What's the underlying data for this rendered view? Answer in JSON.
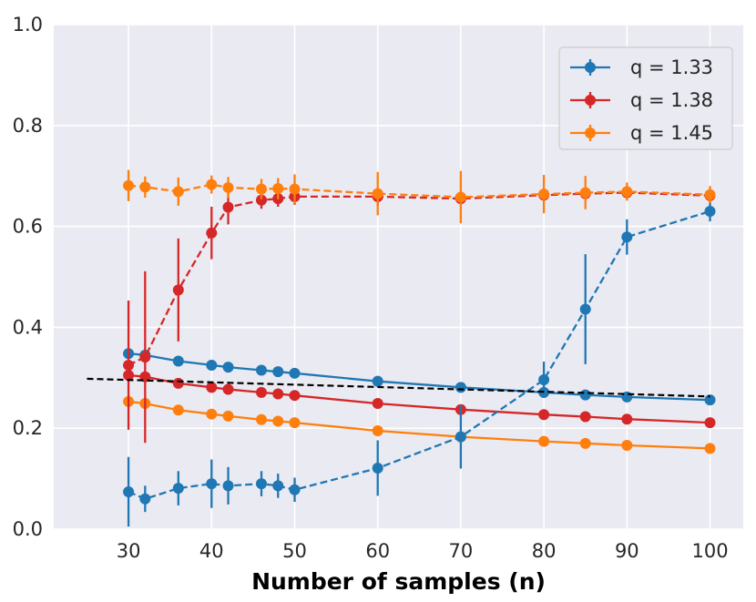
{
  "chart_data": {
    "type": "line",
    "title": "",
    "xlabel": "Number of samples (n)",
    "ylabel": "",
    "xlim": [
      21,
      104
    ],
    "ylim": [
      0.0,
      1.0
    ],
    "xticks": [
      30,
      40,
      50,
      60,
      70,
      80,
      90,
      100
    ],
    "yticks": [
      0.0,
      0.2,
      0.4,
      0.6,
      0.8,
      1.0
    ],
    "xtick_labels": [
      "30",
      "40",
      "50",
      "60",
      "70",
      "80",
      "90",
      "100"
    ],
    "ytick_labels": [
      "0.0",
      "0.2",
      "0.4",
      "0.6",
      "0.8",
      "1.0"
    ],
    "grid": true,
    "legend_position": "top-right",
    "legend": [
      {
        "label": "q = 1.33",
        "color": "#1f77b4"
      },
      {
        "label": "q = 1.38",
        "color": "#d62728"
      },
      {
        "label": "q = 1.45",
        "color": "#ff7f0e"
      }
    ],
    "x": [
      30,
      32,
      36,
      40,
      42,
      46,
      48,
      50,
      60,
      70,
      80,
      85,
      90,
      100
    ],
    "series": [
      {
        "name": "q = 1.33 (solid)",
        "color": "#1f77b4",
        "style": "solid",
        "values": [
          0.348,
          0.345,
          0.333,
          0.325,
          0.321,
          0.315,
          0.312,
          0.309,
          0.293,
          0.281,
          0.271,
          0.266,
          0.262,
          0.256
        ]
      },
      {
        "name": "q = 1.38 (solid)",
        "color": "#d62728",
        "style": "solid",
        "values": [
          0.305,
          0.302,
          0.289,
          0.281,
          0.277,
          0.271,
          0.268,
          0.265,
          0.249,
          0.237,
          0.227,
          0.223,
          0.218,
          0.211
        ]
      },
      {
        "name": "q = 1.45 (solid)",
        "color": "#ff7f0e",
        "style": "solid",
        "values": [
          0.253,
          0.249,
          0.236,
          0.228,
          0.224,
          0.217,
          0.214,
          0.211,
          0.195,
          0.183,
          0.174,
          0.17,
          0.166,
          0.16
        ]
      },
      {
        "name": "q = 1.33 (dashed)",
        "color": "#1f77b4",
        "style": "dashed",
        "values": [
          0.074,
          0.06,
          0.081,
          0.09,
          0.086,
          0.09,
          0.086,
          0.078,
          0.121,
          0.183,
          0.296,
          0.436,
          0.579,
          0.63
        ],
        "errors": [
          0.069,
          0.026,
          0.034,
          0.048,
          0.037,
          0.025,
          0.024,
          0.024,
          0.055,
          0.063,
          0.036,
          0.109,
          0.035,
          0.02
        ]
      },
      {
        "name": "q = 1.38 (dashed)",
        "color": "#d62728",
        "style": "dashed",
        "values": [
          0.325,
          0.341,
          0.474,
          0.587,
          0.638,
          0.652,
          0.655,
          0.659,
          0.659,
          0.655,
          0.662,
          0.665,
          0.667,
          0.661
        ],
        "errors": [
          0.128,
          0.17,
          0.102,
          0.052,
          0.034,
          0.017,
          0.016,
          0.016,
          0.018,
          0.012,
          0.01,
          0.01,
          0.008,
          0.007
        ]
      },
      {
        "name": "q = 1.45 (dashed)",
        "color": "#ff7f0e",
        "style": "dashed",
        "values": [
          0.681,
          0.678,
          0.669,
          0.683,
          0.677,
          0.674,
          0.675,
          0.674,
          0.665,
          0.658,
          0.664,
          0.667,
          0.669,
          0.663
        ],
        "errors": [
          0.031,
          0.021,
          0.028,
          0.018,
          0.021,
          0.02,
          0.021,
          0.029,
          0.043,
          0.052,
          0.038,
          0.033,
          0.018,
          0.017
        ]
      },
      {
        "name": "reference (black dashed)",
        "color": "#000000",
        "style": "dashed",
        "x": [
          25,
          100
        ],
        "values": [
          0.298,
          0.263
        ]
      }
    ]
  }
}
